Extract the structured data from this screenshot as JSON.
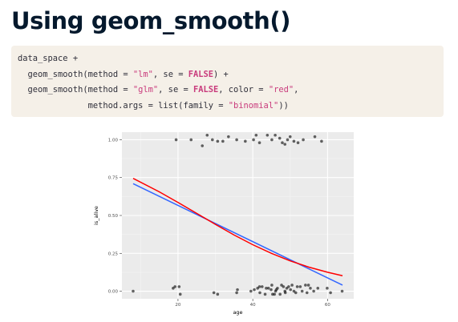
{
  "slide": {
    "title": "Using geom_smooth()"
  },
  "code": {
    "lines": [
      [
        {
          "t": "data_space +",
          "c": "plain"
        }
      ],
      [
        {
          "t": "  geom_smooth(method = ",
          "c": "plain"
        },
        {
          "t": "\"lm\"",
          "c": "str"
        },
        {
          "t": ", se = ",
          "c": "plain"
        },
        {
          "t": "FALSE",
          "c": "kw"
        },
        {
          "t": ") +",
          "c": "plain"
        }
      ],
      [
        {
          "t": "  geom_smooth(method = ",
          "c": "plain"
        },
        {
          "t": "\"glm\"",
          "c": "str"
        },
        {
          "t": ", se = ",
          "c": "plain"
        },
        {
          "t": "FALSE",
          "c": "kw"
        },
        {
          "t": ", color = ",
          "c": "plain"
        },
        {
          "t": "\"red\"",
          "c": "str"
        },
        {
          "t": ",",
          "c": "plain"
        }
      ],
      [
        {
          "t": "              method.args = list(family = ",
          "c": "plain"
        },
        {
          "t": "\"binomial\"",
          "c": "str"
        },
        {
          "t": "))",
          "c": "plain"
        }
      ]
    ]
  },
  "chart_data": {
    "type": "scatter",
    "xlabel": "age",
    "ylabel": "is_alive",
    "xlim": [
      5,
      67
    ],
    "ylim": [
      -0.05,
      1.05
    ],
    "x_ticks": [
      20,
      40,
      60
    ],
    "x_tick_labels": [
      "20",
      "40",
      "60"
    ],
    "y_ticks": [
      0,
      0.25,
      0.5,
      0.75,
      1
    ],
    "y_tick_labels": [
      "0.00",
      "0.25",
      "0.50",
      "0.75",
      "1.00"
    ],
    "grid": true,
    "colors": {
      "panel": "#ebebeb",
      "grid_major": "#ffffff",
      "grid_minor": "#f5f5f5",
      "points": "#000000",
      "lm_line": "#3366ff",
      "glm_line": "#ff0000"
    },
    "points": [
      [
        19.5,
        1.0
      ],
      [
        23.5,
        1.0
      ],
      [
        26.5,
        0.96
      ],
      [
        27.8,
        1.03
      ],
      [
        29.2,
        1.0
      ],
      [
        30.6,
        0.99
      ],
      [
        32.0,
        0.99
      ],
      [
        33.5,
        1.02
      ],
      [
        35.7,
        1.0
      ],
      [
        38.0,
        0.99
      ],
      [
        40.2,
        1.0
      ],
      [
        40.9,
        1.03
      ],
      [
        41.8,
        0.98
      ],
      [
        43.9,
        1.03
      ],
      [
        45.1,
        1.0
      ],
      [
        46.0,
        1.03
      ],
      [
        47.2,
        1.01
      ],
      [
        47.9,
        0.98
      ],
      [
        48.6,
        0.97
      ],
      [
        49.3,
        1.0
      ],
      [
        50.0,
        1.02
      ],
      [
        51.0,
        0.99
      ],
      [
        52.1,
        0.98
      ],
      [
        53.5,
        1.0
      ],
      [
        56.6,
        1.02
      ],
      [
        58.4,
        0.99
      ],
      [
        8.0,
        0.0
      ],
      [
        18.7,
        0.02
      ],
      [
        19.2,
        0.03
      ],
      [
        20.3,
        0.03
      ],
      [
        20.6,
        -0.02
      ],
      [
        29.6,
        -0.01
      ],
      [
        30.6,
        -0.02
      ],
      [
        35.7,
        -0.01
      ],
      [
        35.9,
        0.01
      ],
      [
        39.5,
        0.0
      ],
      [
        40.4,
        0.01
      ],
      [
        41.3,
        0.02
      ],
      [
        41.8,
        0.03
      ],
      [
        41.9,
        -0.01
      ],
      [
        42.5,
        0.03
      ],
      [
        43.3,
        -0.02
      ],
      [
        43.6,
        0.02
      ],
      [
        44.2,
        0.02
      ],
      [
        44.9,
        0.01
      ],
      [
        45.1,
        0.04
      ],
      [
        45.3,
        -0.02
      ],
      [
        45.8,
        -0.02
      ],
      [
        46.1,
        0.0
      ],
      [
        46.3,
        0.01
      ],
      [
        46.6,
        0.02
      ],
      [
        47.3,
        -0.02
      ],
      [
        47.7,
        0.04
      ],
      [
        48.2,
        0.03
      ],
      [
        48.6,
        0.0
      ],
      [
        48.7,
        -0.01
      ],
      [
        49.1,
        0.02
      ],
      [
        49.6,
        0.03
      ],
      [
        50.1,
        0.01
      ],
      [
        50.5,
        0.04
      ],
      [
        51.0,
        0.0
      ],
      [
        51.5,
        -0.01
      ],
      [
        51.9,
        0.03
      ],
      [
        52.7,
        0.03
      ],
      [
        53.2,
        0.0
      ],
      [
        54.1,
        0.04
      ],
      [
        54.5,
        -0.01
      ],
      [
        54.9,
        0.04
      ],
      [
        55.4,
        0.02
      ],
      [
        56.3,
        0.0
      ],
      [
        57.4,
        0.02
      ],
      [
        59.9,
        0.02
      ],
      [
        60.8,
        -0.01
      ],
      [
        63.9,
        0.0
      ]
    ],
    "series": [
      {
        "method": "lm",
        "color": "#3366ff",
        "x": [
          8,
          64
        ],
        "y": [
          0.71,
          0.04
        ]
      },
      {
        "method": "glm",
        "color": "#ff0000",
        "x": [
          8,
          15,
          20,
          25,
          30,
          35,
          40,
          45,
          50,
          55,
          60,
          64
        ],
        "y": [
          0.745,
          0.656,
          0.586,
          0.514,
          0.441,
          0.371,
          0.307,
          0.25,
          0.2,
          0.159,
          0.125,
          0.102
        ]
      }
    ]
  }
}
